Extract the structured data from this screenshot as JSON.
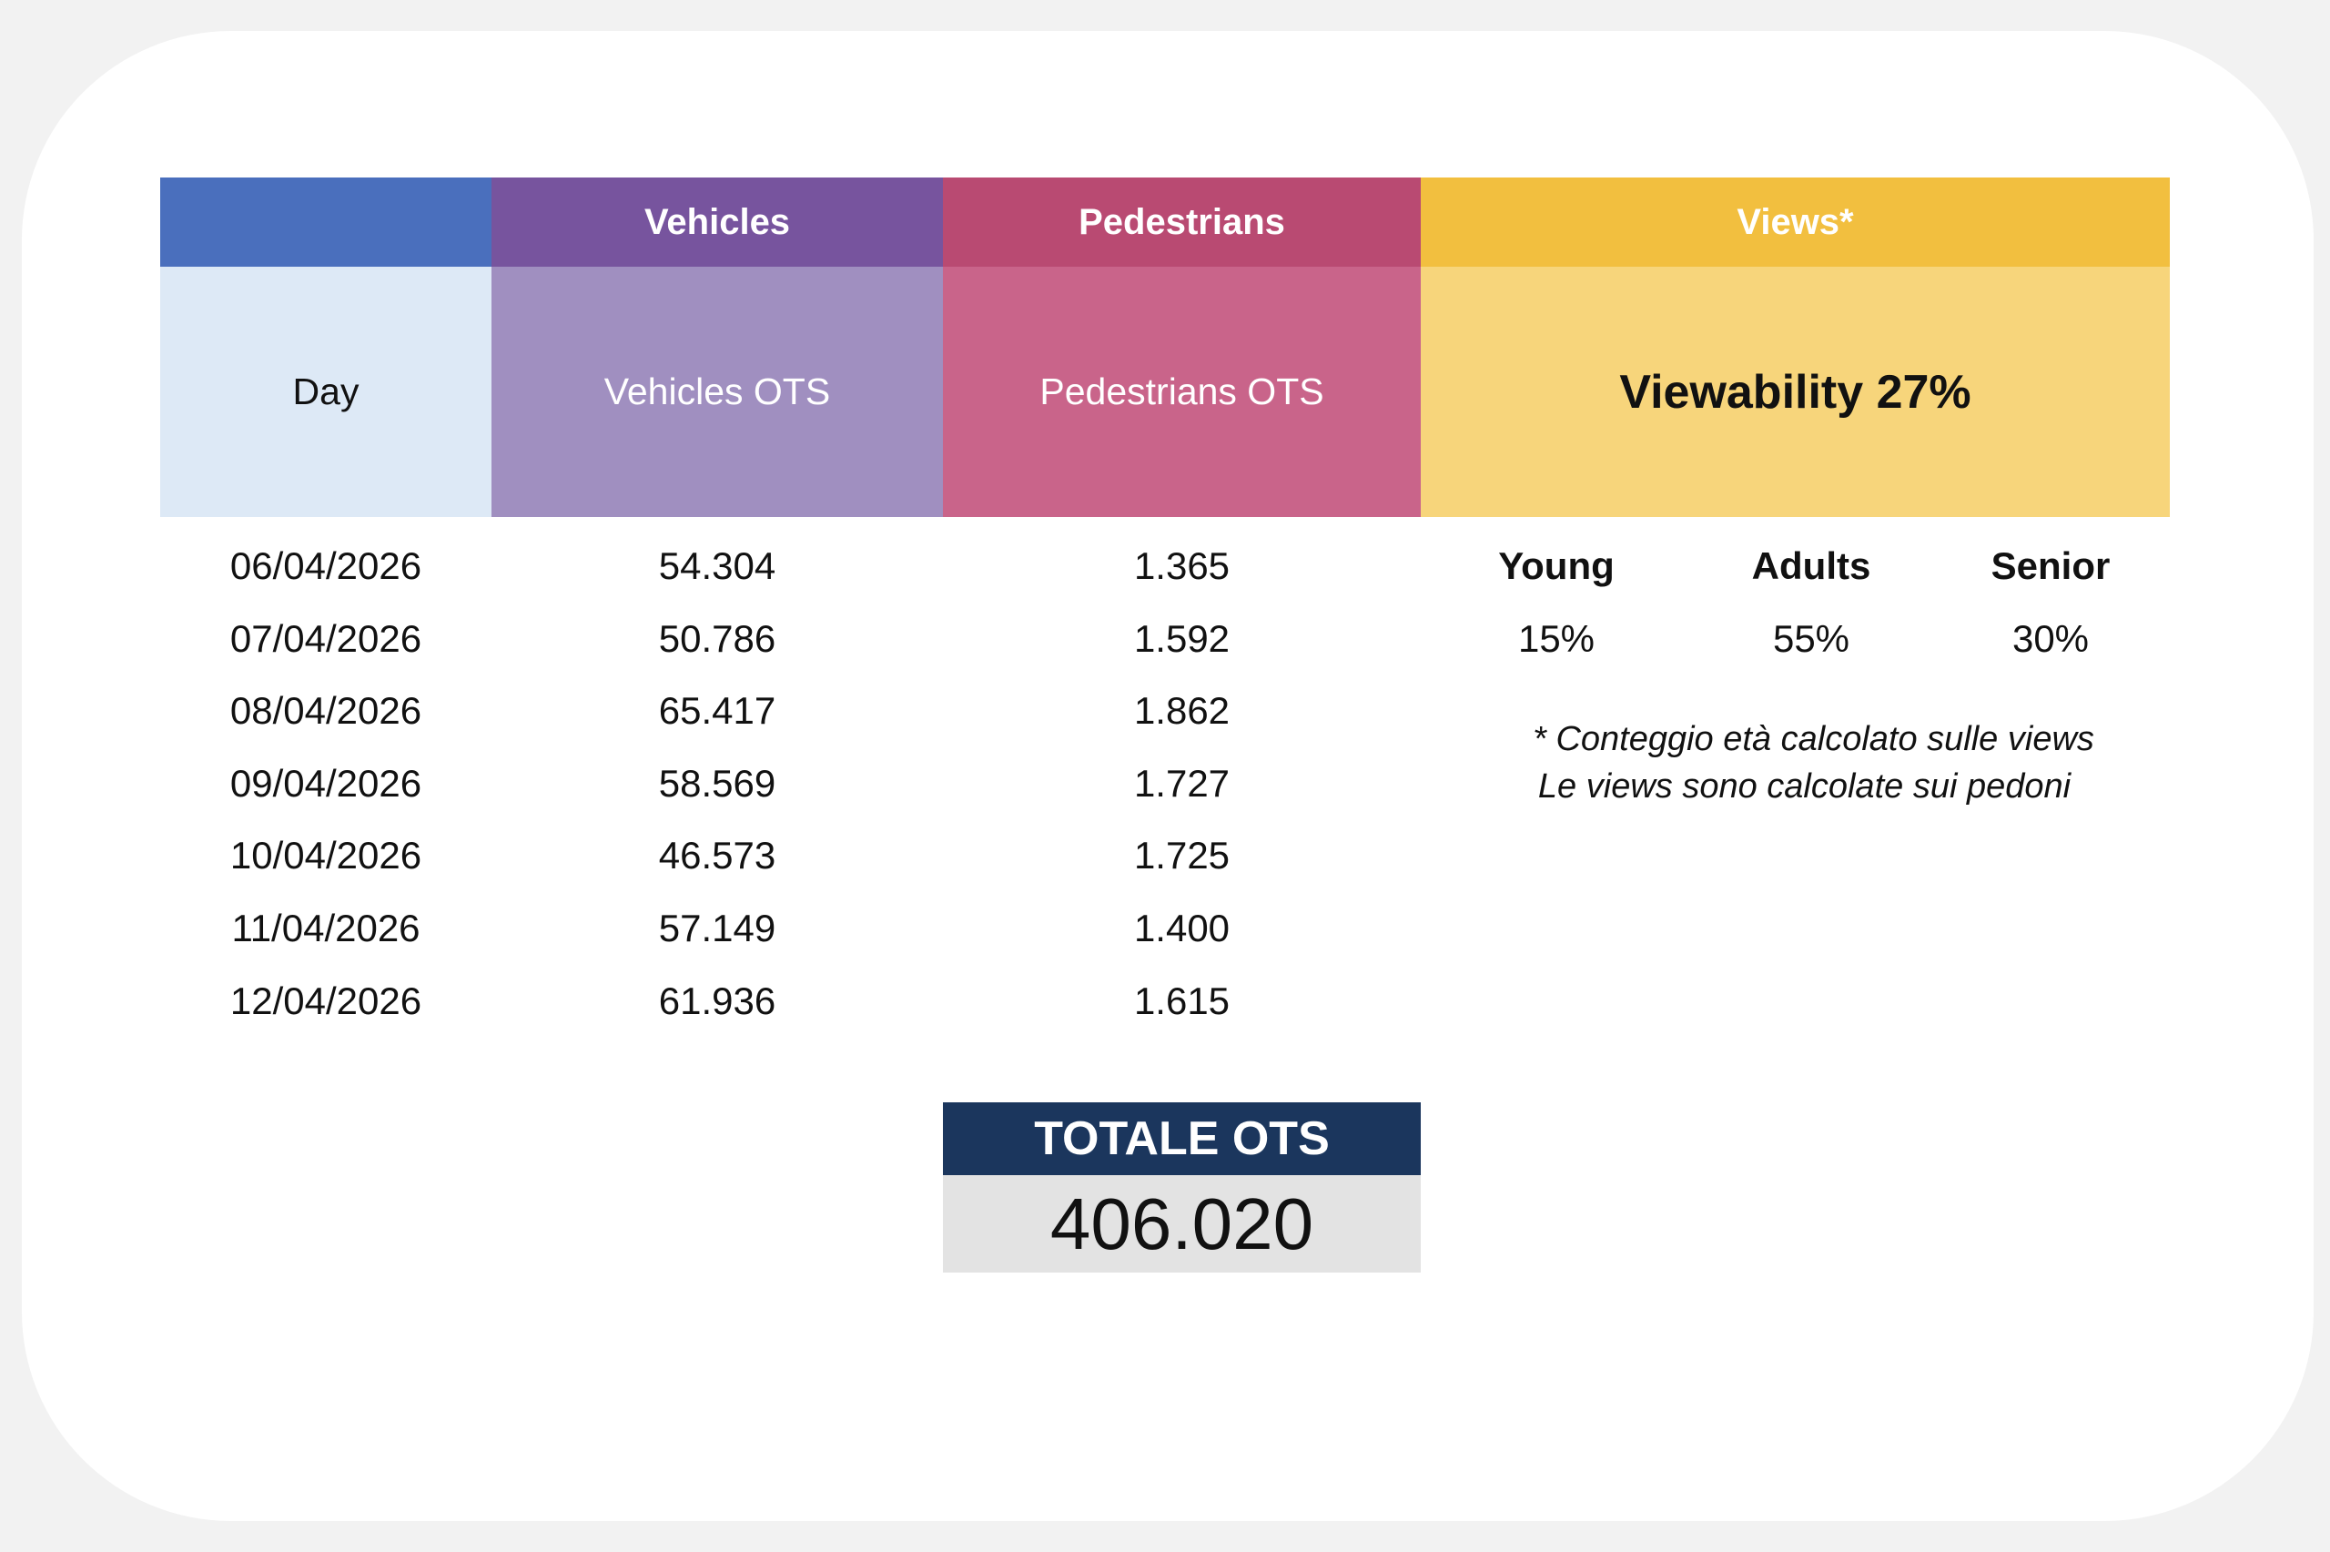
{
  "header": {
    "vehicles": "Vehicles",
    "pedestrians": "Pedestrians",
    "views": "Views*"
  },
  "subheader": {
    "day": "Day",
    "vehicles_ots": "Vehicles OTS",
    "pedestrians_ots": "Pedestrians OTS",
    "viewability": "Viewability 27%"
  },
  "rows": [
    {
      "day": "06/04/2026",
      "vehicles": "54.304",
      "pedestrians": "1.365"
    },
    {
      "day": "07/04/2026",
      "vehicles": "50.786",
      "pedestrians": "1.592"
    },
    {
      "day": "08/04/2026",
      "vehicles": "65.417",
      "pedestrians": "1.862"
    },
    {
      "day": "09/04/2026",
      "vehicles": "58.569",
      "pedestrians": "1.727"
    },
    {
      "day": "10/04/2026",
      "vehicles": "46.573",
      "pedestrians": "1.725"
    },
    {
      "day": "11/04/2026",
      "vehicles": "57.149",
      "pedestrians": "1.400"
    },
    {
      "day": "12/04/2026",
      "vehicles": "61.936",
      "pedestrians": "1.615"
    }
  ],
  "age": {
    "young_label": "Young",
    "adults_label": "Adults",
    "senior_label": "Senior",
    "young_value": "15%",
    "adults_value": "55%",
    "senior_value": "30%"
  },
  "notes": {
    "line1": "* Conteggio età calcolato sulle views",
    "line2": "Le views sono calcolate sui pedoni"
  },
  "total": {
    "label": "TOTALE OTS",
    "value": "406.020"
  },
  "colors": {
    "day_header": "#4a6fbd",
    "day_sub": "#dde9f6",
    "vehicles_header": "#77549e",
    "vehicles_sub": "#a08fc0",
    "pedestrians_header": "#b94a72",
    "pedestrians_sub": "#c9648a",
    "views_header": "#f2bf3f",
    "views_sub": "#f7d57b",
    "total_header": "#1b365d",
    "total_body": "#e3e3e3"
  }
}
